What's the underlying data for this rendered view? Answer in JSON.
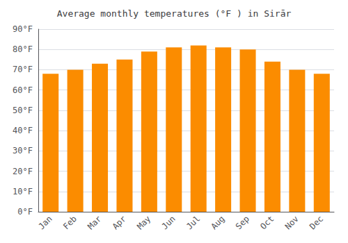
{
  "chart_data": {
    "type": "bar",
    "title": "Average monthly temperatures (°F ) in Sirār",
    "categories": [
      "Jan",
      "Feb",
      "Mar",
      "Apr",
      "May",
      "Jun",
      "Jul",
      "Aug",
      "Sep",
      "Oct",
      "Nov",
      "Dec"
    ],
    "values": [
      68,
      70,
      73,
      75,
      79,
      81,
      82,
      81,
      80,
      74,
      70,
      68
    ],
    "color": "#FB8C00",
    "ylim": [
      0,
      90
    ],
    "yticks": [
      {
        "value": 0,
        "label": "0°F"
      },
      {
        "value": 10,
        "label": "10°F"
      },
      {
        "value": 20,
        "label": "20°F"
      },
      {
        "value": 30,
        "label": "30°F"
      },
      {
        "value": 40,
        "label": "40°F"
      },
      {
        "value": 50,
        "label": "50°F"
      },
      {
        "value": 60,
        "label": "60°F"
      },
      {
        "value": 70,
        "label": "70°F"
      },
      {
        "value": 80,
        "label": "80°F"
      },
      {
        "value": 90,
        "label": "90°F"
      }
    ],
    "grid": true
  }
}
